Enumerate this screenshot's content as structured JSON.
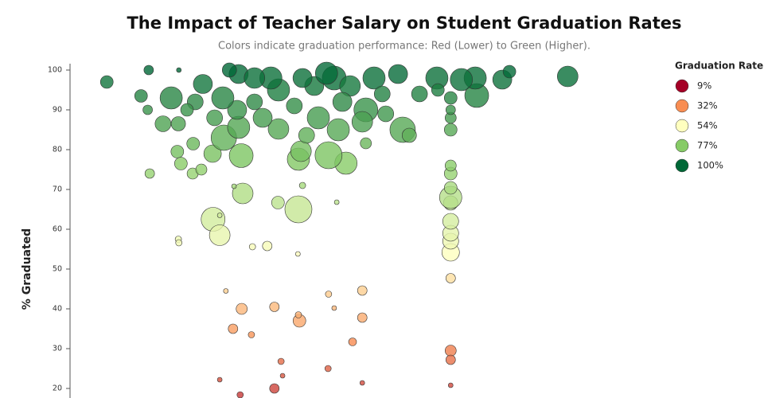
{
  "chart_data": {
    "type": "bubble",
    "title": "The Impact of Teacher Salary on Student Graduation Rates",
    "subtitle": "Colors indicate graduation performance: Red (Lower) to Green (Higher).",
    "y_label": "% Graduated",
    "legend_title": "Graduation Rate",
    "legend_position": "right",
    "grid": false,
    "colorscale": [
      {
        "value": 9,
        "label": "9%",
        "color": "#a50026"
      },
      {
        "value": 32,
        "label": "32%",
        "color": "#f88d52"
      },
      {
        "value": 54,
        "label": "54%",
        "color": "#ffffbf"
      },
      {
        "value": 77,
        "label": "77%",
        "color": "#86cb66"
      },
      {
        "value": 100,
        "label": "100%",
        "color": "#006837"
      }
    ],
    "xlim": [
      0,
      100
    ],
    "ylim": [
      17.6,
      101.6
    ],
    "yticks": [
      20,
      30,
      40,
      50,
      60,
      70,
      80,
      90,
      100
    ],
    "x": [
      7.2,
      15.4,
      21.3,
      13.9,
      15.2,
      18.2,
      21.2,
      21.0,
      24.1,
      21.7,
      24.0,
      25.7,
      15.6,
      27.9,
      30.1,
      33.5,
      33.8,
      28.0,
      29.3,
      29.3,
      21.2,
      21.3,
      35.7,
      38.6,
      44.6,
      40.7,
      44.7,
      45.5,
      52.2,
      32.1,
      30.5,
      33.6,
      40.0,
      44.9,
      44.7,
      50.6,
      51.7,
      57.2,
      57.2,
      31.9,
      35.5,
      55.3,
      41.3,
      41.6,
      50.5,
      57.2,
      29.3,
      40.0,
      33.3,
      74.5,
      74.5,
      74.5,
      74.5,
      74.5,
      74.5,
      74.5,
      74.5,
      74.5,
      74.5,
      74.5,
      74.5,
      74.5,
      74.5,
      74.5,
      74.5,
      74.5,
      97.4,
      84.6,
      86.0,
      79.6,
      79.3,
      76.6,
      71.8,
      68.4,
      65.1,
      66.4,
      57.9,
      54.0,
      50.6,
      44.7,
      45.2,
      46.3,
      40.8,
      37.7,
      33.0,
      32.7,
      29.9,
      26.0,
      24.5,
      19.8,
      22.9,
      36.1,
      40.8,
      47.8,
      51.7,
      54.8,
      59.5,
      64.2,
      57.9,
      53.3,
      48.6,
      43.9,
      39.3,
      33.0,
      36.1,
      31.2,
      50.2,
      45.5,
      57.2,
      61.1,
      28.3,
      52.5,
      61.8,
      72.0
    ],
    "y": [
      97,
      100,
      100,
      93.5,
      90,
      86.5,
      86.5,
      79.5,
      81.5,
      76.5,
      74,
      75,
      74,
      79,
      83,
      78.5,
      69,
      62.5,
      58.5,
      63.5,
      57.5,
      56.6,
      55.6,
      55.8,
      53.8,
      66.7,
      65,
      71,
      66.8,
      70.8,
      44.5,
      40,
      40.5,
      37,
      38.5,
      43.7,
      40.2,
      44.6,
      37.8,
      35,
      33.5,
      31.7,
      26.8,
      23.2,
      25,
      21.4,
      22.2,
      20,
      18.4,
      29.5,
      27.2,
      20.8,
      47.7,
      54.2,
      57,
      59,
      62,
      66.6,
      68,
      70.4,
      74,
      76,
      85,
      88,
      90,
      93,
      98.4,
      97.6,
      99.6,
      93.6,
      98,
      97.6,
      98,
      94,
      85,
      83.6,
      81.6,
      76.6,
      78.6,
      77.6,
      79.6,
      83.6,
      85.2,
      88,
      85.6,
      90,
      93,
      96.5,
      92,
      93,
      90,
      92,
      95,
      96,
      98,
      96,
      98,
      99,
      90,
      92,
      88,
      91,
      98,
      99,
      98,
      100,
      99.2,
      98,
      87,
      94,
      88,
      85,
      89,
      95
    ],
    "sizes": [
      8,
      6,
      3,
      8,
      6,
      10,
      9,
      8,
      8,
      8,
      7,
      7,
      6,
      11,
      16,
      15,
      13,
      15,
      13,
      3,
      4,
      4,
      4,
      6,
      3,
      8,
      17,
      4,
      3,
      3,
      3,
      7,
      6,
      8,
      4,
      4,
      3,
      6,
      6,
      6,
      4,
      5,
      4,
      3,
      4,
      3,
      3,
      6,
      4,
      7,
      6,
      3,
      6,
      11,
      10,
      10,
      10,
      9,
      14,
      8,
      8,
      7,
      8,
      7,
      6,
      8,
      13,
      12,
      8,
      15,
      14,
      14,
      14,
      10,
      16,
      9,
      7,
      14,
      17,
      14,
      13,
      10,
      13,
      12,
      14,
      12,
      14,
      12,
      10,
      14,
      8,
      10,
      14,
      12,
      15,
      13,
      14,
      12,
      15,
      12,
      14,
      10,
      14,
      12,
      13,
      9,
      14,
      12,
      13,
      10,
      10,
      14,
      10,
      8
    ]
  }
}
